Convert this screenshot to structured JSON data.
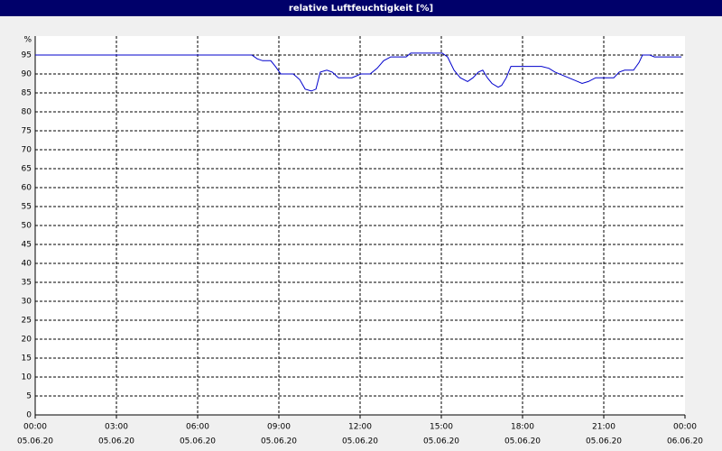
{
  "chart_data": {
    "type": "line",
    "title": "relative Luftfeuchtigkeit [%]",
    "y_unit": "%",
    "x": [
      0,
      8.0,
      8.2,
      8.4,
      8.7,
      8.87,
      9.07,
      9.53,
      9.77,
      9.97,
      10.2,
      10.37,
      10.53,
      10.77,
      10.97,
      11.2,
      11.7,
      12.03,
      12.37,
      12.63,
      12.87,
      13.13,
      13.7,
      13.87,
      15.03,
      15.23,
      15.47,
      15.7,
      15.97,
      16.17,
      16.37,
      16.53,
      16.7,
      16.87,
      17.1,
      17.23,
      17.4,
      17.57,
      18.7,
      18.97,
      19.2,
      19.53,
      19.87,
      20.2,
      20.43,
      20.7,
      21.37,
      21.57,
      21.77,
      22.1,
      22.3,
      22.43,
      22.7,
      22.87,
      23.87
    ],
    "series": [
      {
        "color": "#0000cc",
        "values": [
          95,
          95,
          94,
          93.5,
          93.5,
          92,
          90,
          90,
          88.5,
          86,
          85.5,
          86,
          90.5,
          91,
          90.5,
          89,
          89,
          90,
          90,
          91.5,
          93.5,
          94.5,
          94.5,
          95.5,
          95.5,
          94.5,
          91,
          89,
          88,
          89,
          90.5,
          91,
          89,
          87.5,
          86.5,
          87,
          89,
          92,
          92,
          91.5,
          90.5,
          89.5,
          88.5,
          87.5,
          88,
          89,
          89,
          90.5,
          91,
          91,
          93,
          95,
          95,
          94.5,
          94.5
        ]
      }
    ],
    "xlim": [
      0,
      24
    ],
    "xticks": [
      {
        "value": 0,
        "label": [
          "00:00",
          "05.06.20"
        ]
      },
      {
        "value": 3,
        "label": [
          "03:00",
          "05.06.20"
        ]
      },
      {
        "value": 6,
        "label": [
          "06:00",
          "05.06.20"
        ]
      },
      {
        "value": 9,
        "label": [
          "09:00",
          "05.06.20"
        ]
      },
      {
        "value": 12,
        "label": [
          "12:00",
          "05.06.20"
        ]
      },
      {
        "value": 15,
        "label": [
          "15:00",
          "05.06.20"
        ]
      },
      {
        "value": 18,
        "label": [
          "18:00",
          "05.06.20"
        ]
      },
      {
        "value": 21,
        "label": [
          "21:00",
          "05.06.20"
        ]
      },
      {
        "value": 24,
        "label": [
          "00:00",
          "06.06.20"
        ]
      }
    ],
    "ylim": [
      0,
      100
    ],
    "yticks": [
      0,
      5,
      10,
      15,
      20,
      25,
      30,
      35,
      40,
      45,
      50,
      55,
      60,
      65,
      70,
      75,
      80,
      85,
      90,
      95
    ],
    "grid": true
  }
}
